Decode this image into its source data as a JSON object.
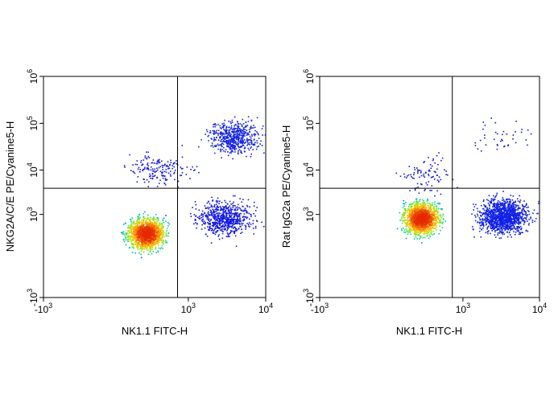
{
  "chart_data": [
    {
      "type": "scatter",
      "subtype": "flow-cytometry-pseudocolor-density",
      "xlabel": "NK1.1 FITC-H",
      "ylabel": "NKG2A/C/E PE/Cyanine5-H",
      "x_scale": "biexponential",
      "y_scale": "biexponential",
      "xlim": [
        -1000,
        10000
      ],
      "ylim": [
        -1000,
        1000000
      ],
      "x_ticks": [
        {
          "value": -1000,
          "base": "-10",
          "exp": "3"
        },
        {
          "value": 1000,
          "base": "10",
          "exp": "3"
        },
        {
          "value": 10000,
          "base": "10",
          "exp": "4"
        }
      ],
      "y_ticks": [
        {
          "value": -1000,
          "base": "-10",
          "exp": "3"
        },
        {
          "value": 1000,
          "base": "10",
          "exp": "3"
        },
        {
          "value": 10000,
          "base": "10",
          "exp": "4"
        },
        {
          "value": 100000,
          "base": "10",
          "exp": "5"
        },
        {
          "value": 1000000,
          "base": "10",
          "exp": "6"
        }
      ],
      "quadrant_gates": {
        "x": 700,
        "y": 4000
      },
      "populations": [
        {
          "label": "double-negative",
          "x_center": 200,
          "y_center": 300,
          "events": 1500,
          "density": "very high"
        },
        {
          "label": "NK1.1+ NKG2A/C/E+",
          "x_center": 4000,
          "y_center": 50000,
          "events": 550,
          "density": "medium"
        },
        {
          "label": "NK1.1+ NKG2A/C/E-",
          "x_center": 3000,
          "y_center": 800,
          "events": 700,
          "density": "low"
        },
        {
          "label": "NK1.1- NKG2A/C/E+",
          "x_center": 350,
          "y_center": 10000,
          "events": 170,
          "density": "low"
        }
      ],
      "grid": false
    },
    {
      "type": "scatter",
      "subtype": "flow-cytometry-pseudocolor-density",
      "xlabel": "NK1.1 FITC-H",
      "ylabel": "Rat IgG2a PE/Cyanine5-H",
      "x_scale": "biexponential",
      "y_scale": "biexponential",
      "xlim": [
        -1000,
        10000
      ],
      "ylim": [
        -1000,
        1000000
      ],
      "x_ticks": [
        {
          "value": -1000,
          "base": "-10",
          "exp": "3"
        },
        {
          "value": 1000,
          "base": "10",
          "exp": "3"
        },
        {
          "value": 10000,
          "base": "10",
          "exp": "4"
        }
      ],
      "y_ticks": [
        {
          "value": -1000,
          "base": "-10",
          "exp": "3"
        },
        {
          "value": 1000,
          "base": "10",
          "exp": "3"
        },
        {
          "value": 10000,
          "base": "10",
          "exp": "4"
        },
        {
          "value": 100000,
          "base": "10",
          "exp": "5"
        },
        {
          "value": 1000000,
          "base": "10",
          "exp": "6"
        }
      ],
      "quadrant_gates": {
        "x": 700,
        "y": 4000
      },
      "populations": [
        {
          "label": "double-negative",
          "x_center": 200,
          "y_center": 800,
          "events": 1500,
          "density": "very high"
        },
        {
          "label": "NK1.1+ isotype-",
          "x_center": 3500,
          "y_center": 900,
          "events": 1300,
          "density": "medium"
        },
        {
          "label": "NK1.1- isotype+",
          "x_center": 250,
          "y_center": 8000,
          "events": 90,
          "density": "low"
        },
        {
          "label": "NK1.1+ isotype+",
          "x_center": 3000,
          "y_center": 50000,
          "events": 40,
          "density": "very low"
        }
      ],
      "grid": false
    }
  ]
}
